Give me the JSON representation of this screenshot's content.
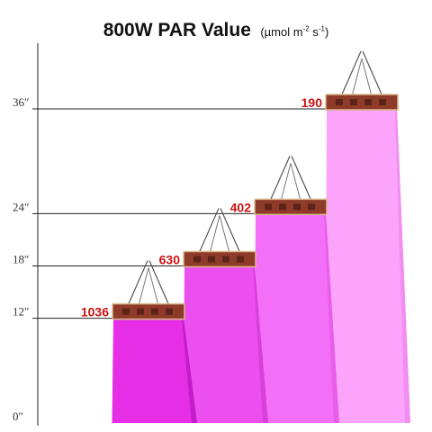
{
  "chart_data": {
    "type": "bar",
    "title": "800W PAR Value",
    "unit_parts": [
      "(µmol m",
      "-2",
      " s",
      "-1",
      ")"
    ],
    "y_ticks": [
      "0″",
      "12″",
      "18″",
      "24″",
      "36″"
    ],
    "y_tick_values": [
      0,
      12,
      18,
      24,
      36
    ],
    "series": [
      {
        "height": 12,
        "value": "1036"
      },
      {
        "height": 18,
        "value": "630"
      },
      {
        "height": 24,
        "value": "402"
      },
      {
        "height": 36,
        "value": "190"
      }
    ],
    "ylim": [
      0,
      36
    ],
    "grid": true,
    "colors": {
      "beam": [
        "#e62ee6",
        "#ec4ff0",
        "#f46ff7",
        "#fca3fb"
      ],
      "beam_side": [
        "#c21dc8",
        "#d840d9",
        "#e85ee9",
        "#f08ef1"
      ],
      "value_label": "#cc1111",
      "lamp_body": "#8e3b2a",
      "lamp_edge": "#d9b98a",
      "grid": "#222222"
    }
  }
}
